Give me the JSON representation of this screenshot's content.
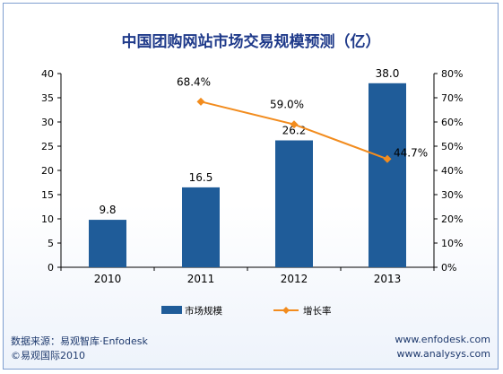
{
  "chart_data": {
    "type": "bar",
    "title": "中国团购网站市场交易规模预测（亿）",
    "categories": [
      "2010",
      "2011",
      "2012",
      "2013"
    ],
    "series": [
      {
        "name": "市场规模",
        "kind": "bar",
        "axis": "left",
        "color": "#1f5c99",
        "values": [
          9.8,
          16.5,
          26.2,
          38.0
        ],
        "labels": [
          "9.8",
          "16.5",
          "26.2",
          "38.0"
        ]
      },
      {
        "name": "增长率",
        "kind": "line",
        "axis": "right",
        "color": "#f28c1e",
        "values": [
          null,
          68.4,
          59.0,
          44.7
        ],
        "labels": [
          "",
          "68.4%",
          "59.0%",
          "44.7%"
        ]
      }
    ],
    "ylim": [
      0,
      40
    ],
    "y_ticks": [
      "0",
      "5",
      "10",
      "15",
      "20",
      "25",
      "30",
      "35",
      "40"
    ],
    "y2lim": [
      0,
      80
    ],
    "y2_ticks": [
      "0%",
      "10%",
      "20%",
      "30%",
      "40%",
      "50%",
      "60%",
      "70%",
      "80%"
    ],
    "grid": false,
    "legend": "bottom"
  },
  "footer": {
    "source": "数据来源：易观智库·Enfodesk",
    "copyright": "©易观国际2010",
    "url1": "www.enfodesk.com",
    "url2": "www.analysys.com"
  }
}
